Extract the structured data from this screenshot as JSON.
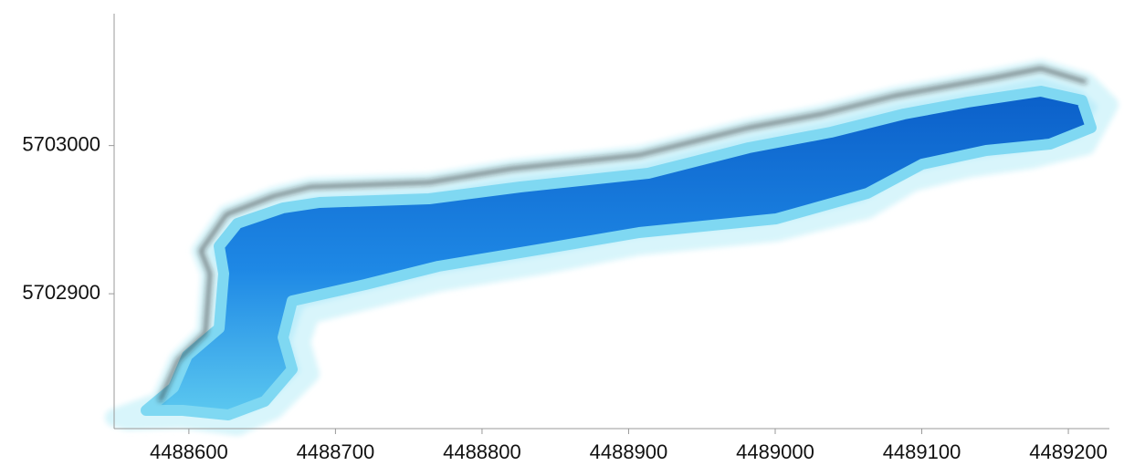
{
  "chart_data": {
    "type": "map",
    "xlim": [
      4488549,
      4489228
    ],
    "ylim": [
      5702809,
      5703089
    ],
    "xticks": [
      4488600,
      4488700,
      4488800,
      4488900,
      4489000,
      4489100,
      4489200
    ],
    "yticks": [
      5702900,
      5703000
    ]
  }
}
